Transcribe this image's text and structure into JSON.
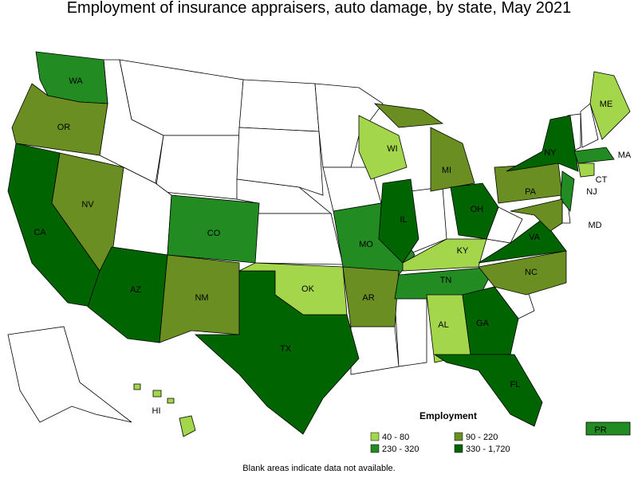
{
  "title": "Employment of insurance appraisers, auto damage, by state, May 2021",
  "states": [
    {
      "label": "WA",
      "color": "#228b22"
    },
    {
      "label": "OR",
      "color": "#6b8e23"
    },
    {
      "label": "CA",
      "color": "#006400"
    },
    {
      "label": "NV",
      "color": "#6b8e23"
    },
    {
      "label": "AZ",
      "color": "#006400"
    },
    {
      "label": "CO",
      "color": "#228b22"
    },
    {
      "label": "NM",
      "color": "#6b8e23"
    },
    {
      "label": "TX",
      "color": "#006400"
    },
    {
      "label": "OK",
      "color": "#a3d64b"
    },
    {
      "label": "MO",
      "color": "#228b22"
    },
    {
      "label": "AR",
      "color": "#6b8e23"
    },
    {
      "label": "IL",
      "color": "#006400"
    },
    {
      "label": "WI",
      "color": "#a3d64b"
    },
    {
      "label": "MI",
      "color": "#6b8e23"
    },
    {
      "label": "OH",
      "color": "#006400"
    },
    {
      "label": "KY",
      "color": "#a3d64b"
    },
    {
      "label": "TN",
      "color": "#228b22"
    },
    {
      "label": "AL",
      "color": "#a3d64b"
    },
    {
      "label": "GA",
      "color": "#006400"
    },
    {
      "label": "FL",
      "color": "#006400"
    },
    {
      "label": "NC",
      "color": "#6b8e23"
    },
    {
      "label": "VA",
      "color": "#006400"
    },
    {
      "label": "PA",
      "color": "#6b8e23"
    },
    {
      "label": "NY",
      "color": "#006400"
    },
    {
      "label": "NJ",
      "color": "#228b22"
    },
    {
      "label": "MD",
      "color": "#6b8e23"
    },
    {
      "label": "CT",
      "color": "#a3d64b"
    },
    {
      "label": "MA",
      "color": "#228b22"
    },
    {
      "label": "ME",
      "color": "#a3d64b"
    },
    {
      "label": "HI",
      "color": "#a3d64b"
    },
    {
      "label": "PR",
      "color": "#228b22"
    }
  ],
  "legend": {
    "title": "Employment",
    "items": [
      {
        "label": "40 - 80",
        "color": "#a3d64b"
      },
      {
        "label": "90 - 220",
        "color": "#6b8e23"
      },
      {
        "label": "230 - 320",
        "color": "#228b22"
      },
      {
        "label": "330 - 1,720",
        "color": "#006400"
      }
    ]
  },
  "note": "Blank areas indicate data not available."
}
